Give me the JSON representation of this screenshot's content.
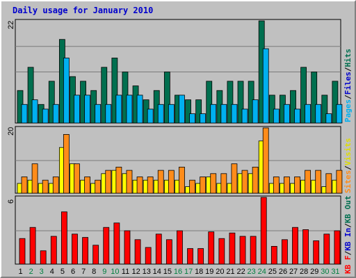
{
  "chart_data": [
    {
      "type": "bar",
      "title": "Daily usage for January 2010",
      "axis_max_label": "22",
      "ylim": [
        0,
        22
      ],
      "categories": [
        "1",
        "2",
        "3",
        "4",
        "5",
        "6",
        "7",
        "8",
        "9",
        "10",
        "11",
        "12",
        "13",
        "14",
        "15",
        "16",
        "17",
        "18",
        "19",
        "20",
        "21",
        "22",
        "23",
        "24",
        "25",
        "26",
        "27",
        "28",
        "29",
        "30",
        "31"
      ],
      "weekend_days": [
        "2",
        "3",
        "9",
        "10",
        "16",
        "17",
        "23",
        "24",
        "30",
        "31"
      ],
      "legend_right": [
        "Pages",
        "Files",
        "Hits"
      ],
      "legend_separator": "/",
      "series": [
        {
          "name": "Hits",
          "color": "#006f4f",
          "values": [
            7,
            12,
            4,
            9,
            18,
            10,
            9,
            7,
            12,
            14,
            11,
            8,
            5,
            7,
            11,
            6,
            5,
            5,
            9,
            7,
            9,
            9,
            9,
            22,
            6,
            6,
            7,
            12,
            11,
            6,
            9
          ]
        },
        {
          "name": "Pages",
          "color": "#00b0f0",
          "values": [
            4,
            5,
            3,
            4,
            14,
            6,
            6,
            4,
            4,
            6,
            6,
            6,
            3,
            4,
            4,
            6,
            2,
            2,
            4,
            4,
            4,
            3,
            5,
            16,
            3,
            4,
            3,
            4,
            4,
            2,
            4
          ]
        }
      ]
    },
    {
      "type": "bar",
      "axis_max_label": "20",
      "ylim": [
        0,
        20
      ],
      "legend_right": [
        "Visits",
        "Sites"
      ],
      "legend_separator": "/",
      "series": [
        {
          "name": "Visits",
          "color": "#ffff00",
          "values": [
            3,
            4,
            3,
            3,
            14,
            9,
            4,
            3,
            6,
            7,
            6,
            4,
            4,
            4,
            4,
            4,
            2,
            3,
            5,
            3,
            3,
            6,
            6,
            16,
            3,
            3,
            3,
            4,
            4,
            2,
            4
          ]
        },
        {
          "name": "Sites",
          "color": "#ff8c1a",
          "values": [
            5,
            9,
            4,
            5,
            18,
            9,
            5,
            4,
            7,
            8,
            7,
            5,
            5,
            7,
            7,
            8,
            4,
            5,
            6,
            6,
            9,
            7,
            8,
            20,
            5,
            5,
            5,
            7,
            7,
            6,
            7
          ]
        }
      ]
    },
    {
      "type": "bar",
      "axis_max_label": "6",
      "ylim": [
        0,
        6
      ],
      "legend_right": [
        "KB F",
        "KB In",
        "KB Out"
      ],
      "legend_separator": "/",
      "series": [
        {
          "name": "KB F",
          "color": "#ff0000",
          "values": [
            2.3,
            3.3,
            1.2,
            2.5,
            4.7,
            2.7,
            2.4,
            1.7,
            3.3,
            3.7,
            3.0,
            2.2,
            1.5,
            2.7,
            2.2,
            3.0,
            1.4,
            1.4,
            2.9,
            2.3,
            2.8,
            2.5,
            2.5,
            6.0,
            1.6,
            2.2,
            3.3,
            3.1,
            2.1,
            2.7,
            3.0
          ]
        }
      ]
    }
  ]
}
